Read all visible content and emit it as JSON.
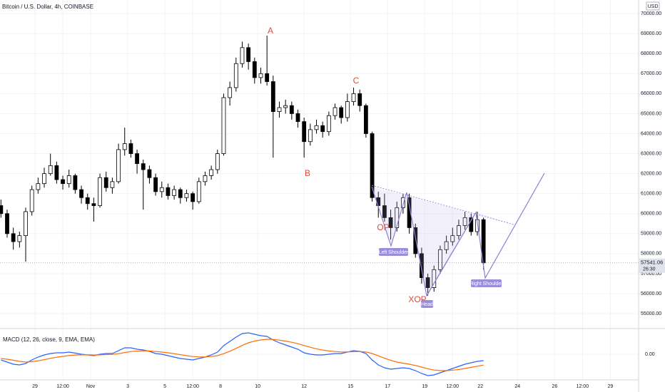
{
  "chart_data": {
    "type": "candlestick",
    "title": "Bitcoin / U.S. Dollar, 4h, COINBASE",
    "currency": "USD",
    "last_price": 57541.06,
    "countdown": "26:30",
    "ylim": [
      54290,
      70680
    ],
    "yticks": [
      {
        "value": 55000,
        "label": "55000.00"
      },
      {
        "value": 56000,
        "label": "56000.00"
      },
      {
        "value": 57000,
        "label": "57000.00"
      },
      {
        "value": 58000,
        "label": "58000.00"
      },
      {
        "value": 59000,
        "label": "59000.00"
      },
      {
        "value": 60000,
        "label": "60000.00"
      },
      {
        "value": 61000,
        "label": "61000.00"
      },
      {
        "value": 62000,
        "label": "62000.00"
      },
      {
        "value": 63000,
        "label": "63000.00"
      },
      {
        "value": 64000,
        "label": "64000.00"
      },
      {
        "value": 65000,
        "label": "65000.00"
      },
      {
        "value": 66000,
        "label": "66000.00"
      },
      {
        "value": 67000,
        "label": "67000.00"
      },
      {
        "value": 68000,
        "label": "68000.00"
      },
      {
        "value": 69000,
        "label": "69000.00"
      },
      {
        "value": 70000,
        "label": "70000.00"
      }
    ],
    "xlim": [
      -0.154,
      103.07
    ],
    "xticks": [
      {
        "value": 5.5,
        "label": "29"
      },
      {
        "value": 10,
        "label": "12:00"
      },
      {
        "value": 14.5,
        "label": "Nov"
      },
      {
        "value": 20.5,
        "label": "3"
      },
      {
        "value": 26.5,
        "label": "5"
      },
      {
        "value": 31,
        "label": "12:00"
      },
      {
        "value": 35.5,
        "label": "8"
      },
      {
        "value": 41.5,
        "label": "10"
      },
      {
        "value": 49,
        "label": "12"
      },
      {
        "value": 56.5,
        "label": "15"
      },
      {
        "value": 62.5,
        "label": "17"
      },
      {
        "value": 68.5,
        "label": "19"
      },
      {
        "value": 73,
        "label": "12:00"
      },
      {
        "value": 77.5,
        "label": "22"
      },
      {
        "value": 83.5,
        "label": "24"
      },
      {
        "value": 89.5,
        "label": "26"
      },
      {
        "value": 94,
        "label": "12:00"
      },
      {
        "value": 98.5,
        "label": "29"
      }
    ],
    "grid": true,
    "up_color": "#ffffff",
    "down_color": "#000000",
    "candles": [
      [
        60400,
        60700,
        59800,
        60000
      ],
      [
        60000,
        60200,
        58800,
        59000
      ],
      [
        59000,
        59300,
        58200,
        58600
      ],
      [
        58600,
        59100,
        58300,
        58900
      ],
      [
        58900,
        60300,
        57600,
        60100
      ],
      [
        60100,
        61400,
        59900,
        61200
      ],
      [
        61200,
        61800,
        61000,
        61500
      ],
      [
        61500,
        62300,
        61300,
        62000
      ],
      [
        62000,
        63000,
        61900,
        62400
      ],
      [
        62400,
        62600,
        61500,
        61700
      ],
      [
        61700,
        61900,
        61200,
        61500
      ],
      [
        61500,
        62200,
        61300,
        61900
      ],
      [
        61900,
        62000,
        61000,
        61200
      ],
      [
        61200,
        61400,
        60500,
        60800
      ],
      [
        60800,
        61000,
        60200,
        60500
      ],
      [
        60500,
        60800,
        59600,
        60400
      ],
      [
        60400,
        62000,
        60300,
        61800
      ],
      [
        61800,
        62100,
        61100,
        61300
      ],
      [
        61300,
        61800,
        61000,
        61600
      ],
      [
        61600,
        63500,
        61500,
        63200
      ],
      [
        63200,
        64300,
        62900,
        63500
      ],
      [
        63500,
        63700,
        62800,
        63000
      ],
      [
        63000,
        63200,
        62000,
        62500
      ],
      [
        62500,
        62700,
        60200,
        62200
      ],
      [
        62200,
        62400,
        61500,
        61800
      ],
      [
        61800,
        62000,
        60900,
        61100
      ],
      [
        61100,
        61600,
        60800,
        61300
      ],
      [
        61300,
        61500,
        60700,
        60900
      ],
      [
        60900,
        61400,
        60700,
        61200
      ],
      [
        61200,
        61300,
        60500,
        60800
      ],
      [
        60800,
        61200,
        60600,
        61000
      ],
      [
        61000,
        61100,
        60200,
        60600
      ],
      [
        60600,
        61800,
        60500,
        61600
      ],
      [
        61600,
        62100,
        61400,
        61900
      ],
      [
        61900,
        62400,
        61700,
        62200
      ],
      [
        62200,
        63200,
        62000,
        63000
      ],
      [
        63000,
        66000,
        62900,
        65800
      ],
      [
        65800,
        66600,
        65400,
        66300
      ],
      [
        66300,
        67800,
        66100,
        67500
      ],
      [
        67500,
        68600,
        67300,
        68300
      ],
      [
        68300,
        68500,
        67200,
        67600
      ],
      [
        67600,
        67800,
        66500,
        66800
      ],
      [
        66800,
        67300,
        66500,
        67000
      ],
      [
        67000,
        68900,
        66400,
        66600
      ],
      [
        66600,
        66900,
        62800,
        65100
      ],
      [
        65100,
        65600,
        64800,
        65300
      ],
      [
        65300,
        65700,
        65000,
        65400
      ],
      [
        65400,
        65600,
        64700,
        65000
      ],
      [
        65000,
        65200,
        64300,
        64600
      ],
      [
        64600,
        64800,
        62800,
        63600
      ],
      [
        63600,
        64500,
        63400,
        64200
      ],
      [
        64200,
        64700,
        64000,
        64400
      ],
      [
        64400,
        64600,
        63800,
        64100
      ],
      [
        64100,
        65100,
        63900,
        64900
      ],
      [
        64900,
        65500,
        64700,
        65300
      ],
      [
        65300,
        65400,
        64500,
        64800
      ],
      [
        64800,
        66000,
        64600,
        65600
      ],
      [
        65600,
        66300,
        65400,
        66000
      ],
      [
        66000,
        66200,
        65100,
        65400
      ],
      [
        65400,
        65500,
        63800,
        64000
      ],
      [
        64000,
        64100,
        60600,
        60800
      ],
      [
        60800,
        61100,
        59800,
        60400
      ],
      [
        60400,
        61000,
        59600,
        59800
      ],
      [
        59800,
        60200,
        58700,
        59300
      ],
      [
        59300,
        60600,
        59100,
        60300
      ],
      [
        60300,
        61000,
        60000,
        60800
      ],
      [
        60800,
        61000,
        59000,
        59300
      ],
      [
        59300,
        59500,
        57800,
        58000
      ],
      [
        58000,
        58300,
        56500,
        56800
      ],
      [
        56800,
        57000,
        55900,
        56300
      ],
      [
        56300,
        57400,
        56100,
        57200
      ],
      [
        57200,
        58400,
        57000,
        58200
      ],
      [
        58200,
        58900,
        58000,
        58600
      ],
      [
        58600,
        59300,
        58400,
        58900
      ],
      [
        58900,
        59700,
        58700,
        59400
      ],
      [
        59400,
        60100,
        59200,
        59800
      ],
      [
        59800,
        60000,
        58900,
        59100
      ],
      [
        59100,
        60100,
        58900,
        59700
      ],
      [
        59700,
        59800,
        57200,
        57541
      ]
    ],
    "annotations": [
      "A",
      "B",
      "C",
      "OP",
      "XOP"
    ],
    "pattern_labels": [
      "Left Shoulder",
      "Head",
      "Right Shoulder"
    ],
    "indicator": {
      "title": "MACD (12, 26, close, 9, EMA, EMA)",
      "ylim": [
        -1800,
        1750
      ],
      "yticks": [
        {
          "value": 0,
          "label": "0.00"
        }
      ],
      "series": [
        {
          "color": "#2962ff",
          "values": [
            -400,
            -550,
            -700,
            -750,
            -650,
            -400,
            -200,
            -50,
            50,
            100,
            100,
            150,
            80,
            0,
            -50,
            -100,
            0,
            50,
            50,
            250,
            450,
            450,
            350,
            300,
            200,
            50,
            0,
            -100,
            -200,
            -300,
            -350,
            -400,
            -300,
            -200,
            -50,
            150,
            600,
            900,
            1200,
            1450,
            1500,
            1400,
            1300,
            1250,
            1000,
            800,
            650,
            500,
            350,
            100,
            0,
            -50,
            -50,
            0,
            50,
            50,
            150,
            250,
            200,
            50,
            -400,
            -750,
            -950,
            -1050,
            -1000,
            -950,
            -1000,
            -1150,
            -1350,
            -1500,
            -1450,
            -1300,
            -1150,
            -1000,
            -850,
            -700,
            -600,
            -500,
            -450
          ]
        },
        {
          "color": "#ff6d00",
          "values": [
            -300,
            -350,
            -420,
            -500,
            -550,
            -520,
            -460,
            -380,
            -290,
            -210,
            -150,
            -90,
            -55,
            -45,
            -45,
            -55,
            -45,
            -25,
            -10,
            40,
            120,
            190,
            220,
            240,
            230,
            190,
            150,
            100,
            40,
            -30,
            -100,
            -160,
            -190,
            -190,
            -160,
            -100,
            40,
            210,
            410,
            620,
            800,
            920,
            1000,
            1050,
            1040,
            990,
            920,
            840,
            740,
            610,
            490,
            380,
            290,
            230,
            190,
            160,
            160,
            180,
            190,
            160,
            50,
            -110,
            -280,
            -430,
            -550,
            -630,
            -700,
            -790,
            -900,
            -1020,
            -1110,
            -1150,
            -1150,
            -1120,
            -1070,
            -1000,
            -920,
            -840,
            -760
          ]
        }
      ]
    }
  }
}
